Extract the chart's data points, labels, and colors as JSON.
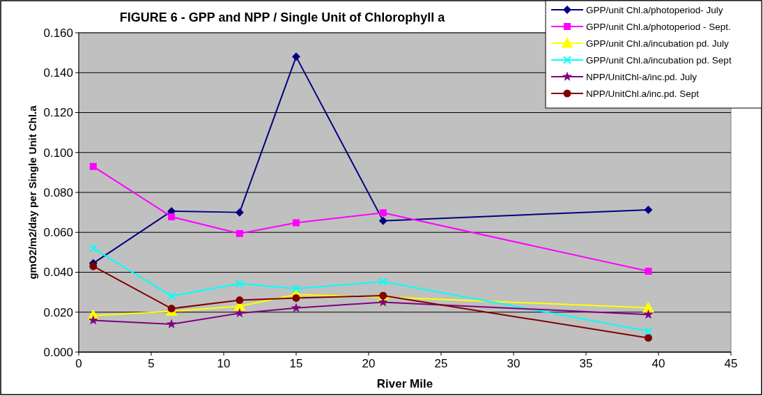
{
  "chart_data": {
    "type": "line",
    "title": "FIGURE 6 - GPP and NPP / Single Unit of Chlorophyll a",
    "xlabel": "River Mile",
    "ylabel": "gmO2/m2/day per Single Unit Chl.a",
    "x": [
      1,
      6.4,
      11.1,
      15,
      21,
      39.3
    ],
    "series": [
      {
        "name": "GPP/unit Chl.a/photoperiod- July",
        "color": "#000080",
        "marker": "diamond",
        "values": [
          0.0445,
          0.0706,
          0.07,
          0.148,
          0.0658,
          0.0713
        ]
      },
      {
        "name": "GPP/unit Chl.a/photoperiod - Sept.",
        "color": "#ff00ff",
        "marker": "square",
        "values": [
          0.093,
          0.0678,
          0.0594,
          0.0648,
          0.0698,
          0.0405
        ]
      },
      {
        "name": "GPP/unit Chl.a/incubation pd. July",
        "color": "#ffff00",
        "marker": "triangle",
        "values": [
          0.0183,
          0.0204,
          0.023,
          0.0288,
          0.0276,
          0.0222
        ]
      },
      {
        "name": "GPP/unit Chl.a/incubation pd. Sept",
        "color": "#00ffff",
        "marker": "cross",
        "values": [
          0.052,
          0.0281,
          0.0343,
          0.0318,
          0.0353,
          0.0105
        ]
      },
      {
        "name": "NPP/UnitChl-a/inc.pd. July",
        "color": "#800080",
        "marker": "star",
        "values": [
          0.0159,
          0.014,
          0.0195,
          0.0221,
          0.025,
          0.0188
        ]
      },
      {
        "name": "NPP/UnitChl.a/inc.pd. Sept",
        "color": "#800000",
        "marker": "circle",
        "values": [
          0.043,
          0.0218,
          0.026,
          0.0271,
          0.0283,
          0.0071
        ]
      }
    ],
    "xlim": [
      0,
      45
    ],
    "xticks": [
      0,
      5,
      10,
      15,
      20,
      25,
      30,
      35,
      40,
      45
    ],
    "ylim": [
      0,
      0.16
    ],
    "yticks": [
      {
        "value": 0,
        "label": "0.000"
      },
      {
        "value": 0.02,
        "label": "0.020"
      },
      {
        "value": 0.04,
        "label": "0.040"
      },
      {
        "value": 0.06,
        "label": "0.060"
      },
      {
        "value": 0.08,
        "label": "0.080"
      },
      {
        "value": 0.1,
        "label": "0.100"
      },
      {
        "value": 0.12,
        "label": "0.120"
      },
      {
        "value": 0.14,
        "label": "0.140"
      },
      {
        "value": 0.16,
        "label": "0.160"
      }
    ],
    "grid": "y",
    "legend": "top right"
  }
}
